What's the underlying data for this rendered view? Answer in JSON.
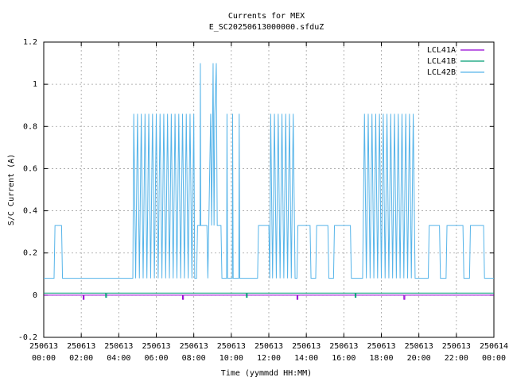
{
  "chart_data": {
    "type": "line",
    "title": "Currents for MEX",
    "subtitle": "E_SC20250613000000.sfduZ",
    "x_label": "Time (yymmdd HH:MM)",
    "y_label": "S/C Current (A)",
    "xlim": [
      0,
      24
    ],
    "xticks": [
      {
        "value": 0,
        "label": "250613\n00:00"
      },
      {
        "value": 2,
        "label": "250613\n02:00"
      },
      {
        "value": 4,
        "label": "250613\n04:00"
      },
      {
        "value": 6,
        "label": "250613\n06:00"
      },
      {
        "value": 8,
        "label": "250613\n08:00"
      },
      {
        "value": 10,
        "label": "250613\n10:00"
      },
      {
        "value": 12,
        "label": "250613\n12:00"
      },
      {
        "value": 14,
        "label": "250613\n14:00"
      },
      {
        "value": 16,
        "label": "250613\n16:00"
      },
      {
        "value": 18,
        "label": "250613\n18:00"
      },
      {
        "value": 20,
        "label": "250613\n20:00"
      },
      {
        "value": 22,
        "label": "250613\n22:00"
      },
      {
        "value": 24,
        "label": "250614\n00:00"
      }
    ],
    "ylim": [
      -0.2,
      1.2
    ],
    "yticks": [
      -0.2,
      0,
      0.2,
      0.4,
      0.6,
      0.8,
      1,
      1.2
    ],
    "grid": true,
    "legend": "top right",
    "series": [
      {
        "name": "LCL41A",
        "color": "#9400d3",
        "x": [
          0,
          2.1,
          2.1,
          2.15,
          2.15,
          7.4,
          7.4,
          7.45,
          7.45,
          13.5,
          13.5,
          13.55,
          13.55,
          19.2,
          19.2,
          19.25,
          19.25,
          24
        ],
        "values": [
          0,
          0,
          -0.02,
          -0.02,
          0,
          0,
          -0.02,
          -0.02,
          0,
          0,
          -0.02,
          -0.02,
          0,
          0,
          -0.02,
          -0.02,
          0,
          0
        ]
      },
      {
        "name": "LCL41B",
        "color": "#009e73",
        "x": [
          0,
          3.3,
          3.3,
          3.35,
          3.35,
          10.8,
          10.8,
          10.85,
          10.85,
          16.6,
          16.6,
          16.65,
          16.65,
          24
        ],
        "values": [
          0.01,
          0.01,
          -0.01,
          -0.01,
          0.01,
          0.01,
          -0.01,
          -0.01,
          0.01,
          0.01,
          -0.01,
          -0.01,
          0.01,
          0.01
        ]
      },
      {
        "name": "LCL42B",
        "color": "#56b4e9",
        "x": [
          0,
          0.55,
          0.6,
          0.95,
          1.0,
          4.75,
          4.8,
          4.9,
          5.0,
          5.1,
          5.2,
          5.3,
          5.4,
          5.5,
          5.6,
          5.7,
          5.8,
          5.9,
          6.0,
          6.1,
          6.2,
          6.3,
          6.4,
          6.5,
          6.6,
          6.7,
          6.8,
          6.9,
          7.0,
          7.1,
          7.2,
          7.3,
          7.4,
          7.5,
          7.6,
          7.7,
          7.8,
          7.9,
          8.0,
          8.05,
          8.15,
          8.2,
          8.33,
          8.35,
          8.37,
          8.7,
          8.75,
          8.8,
          8.9,
          8.95,
          9.03,
          9.08,
          9.12,
          9.2,
          9.25,
          9.45,
          9.5,
          9.75,
          9.77,
          9.8,
          10.05,
          10.07,
          10.1,
          10.4,
          10.42,
          10.45,
          11.4,
          11.45,
          12.0,
          12.05,
          12.1,
          12.2,
          12.3,
          12.4,
          12.5,
          12.6,
          12.7,
          12.8,
          12.9,
          13.0,
          13.1,
          13.2,
          13.3,
          13.4,
          13.5,
          13.55,
          14.2,
          14.25,
          14.5,
          14.55,
          15.15,
          15.2,
          15.45,
          15.5,
          16.35,
          16.4,
          17.0,
          17.1,
          17.2,
          17.3,
          17.4,
          17.5,
          17.6,
          17.7,
          17.8,
          17.9,
          18.0,
          18.1,
          18.2,
          18.3,
          18.4,
          18.5,
          18.6,
          18.7,
          18.8,
          18.9,
          19.0,
          19.1,
          19.2,
          19.3,
          19.4,
          19.5,
          19.6,
          19.7,
          19.8,
          20.5,
          20.55,
          21.1,
          21.15,
          21.45,
          21.5,
          22.35,
          22.4,
          22.7,
          22.75,
          23.45,
          23.5,
          24
        ],
        "values": [
          0.08,
          0.08,
          0.33,
          0.33,
          0.08,
          0.08,
          0.86,
          0.08,
          0.86,
          0.08,
          0.86,
          0.08,
          0.86,
          0.08,
          0.86,
          0.08,
          0.86,
          0.08,
          0.86,
          0.08,
          0.86,
          0.08,
          0.86,
          0.08,
          0.86,
          0.08,
          0.86,
          0.08,
          0.86,
          0.08,
          0.86,
          0.08,
          0.86,
          0.08,
          0.86,
          0.08,
          0.86,
          0.08,
          0.86,
          0.08,
          0.08,
          0.33,
          0.33,
          1.1,
          0.33,
          0.33,
          0.08,
          0.33,
          0.86,
          0.33,
          1.1,
          0.33,
          0.86,
          1.1,
          0.33,
          0.33,
          0.08,
          0.08,
          0.86,
          0.08,
          0.08,
          0.86,
          0.08,
          0.08,
          0.86,
          0.08,
          0.08,
          0.33,
          0.33,
          0.08,
          0.86,
          0.08,
          0.86,
          0.08,
          0.86,
          0.08,
          0.86,
          0.08,
          0.86,
          0.08,
          0.86,
          0.08,
          0.86,
          0.08,
          0.08,
          0.33,
          0.33,
          0.08,
          0.08,
          0.33,
          0.33,
          0.08,
          0.08,
          0.33,
          0.33,
          0.08,
          0.08,
          0.86,
          0.08,
          0.86,
          0.08,
          0.86,
          0.08,
          0.86,
          0.08,
          0.86,
          0.08,
          0.86,
          0.08,
          0.86,
          0.08,
          0.86,
          0.08,
          0.86,
          0.08,
          0.86,
          0.08,
          0.86,
          0.08,
          0.86,
          0.08,
          0.86,
          0.08,
          0.86,
          0.08,
          0.08,
          0.33,
          0.33,
          0.08,
          0.08,
          0.33,
          0.33,
          0.08,
          0.08,
          0.33,
          0.33,
          0.08,
          0.08
        ]
      }
    ]
  }
}
